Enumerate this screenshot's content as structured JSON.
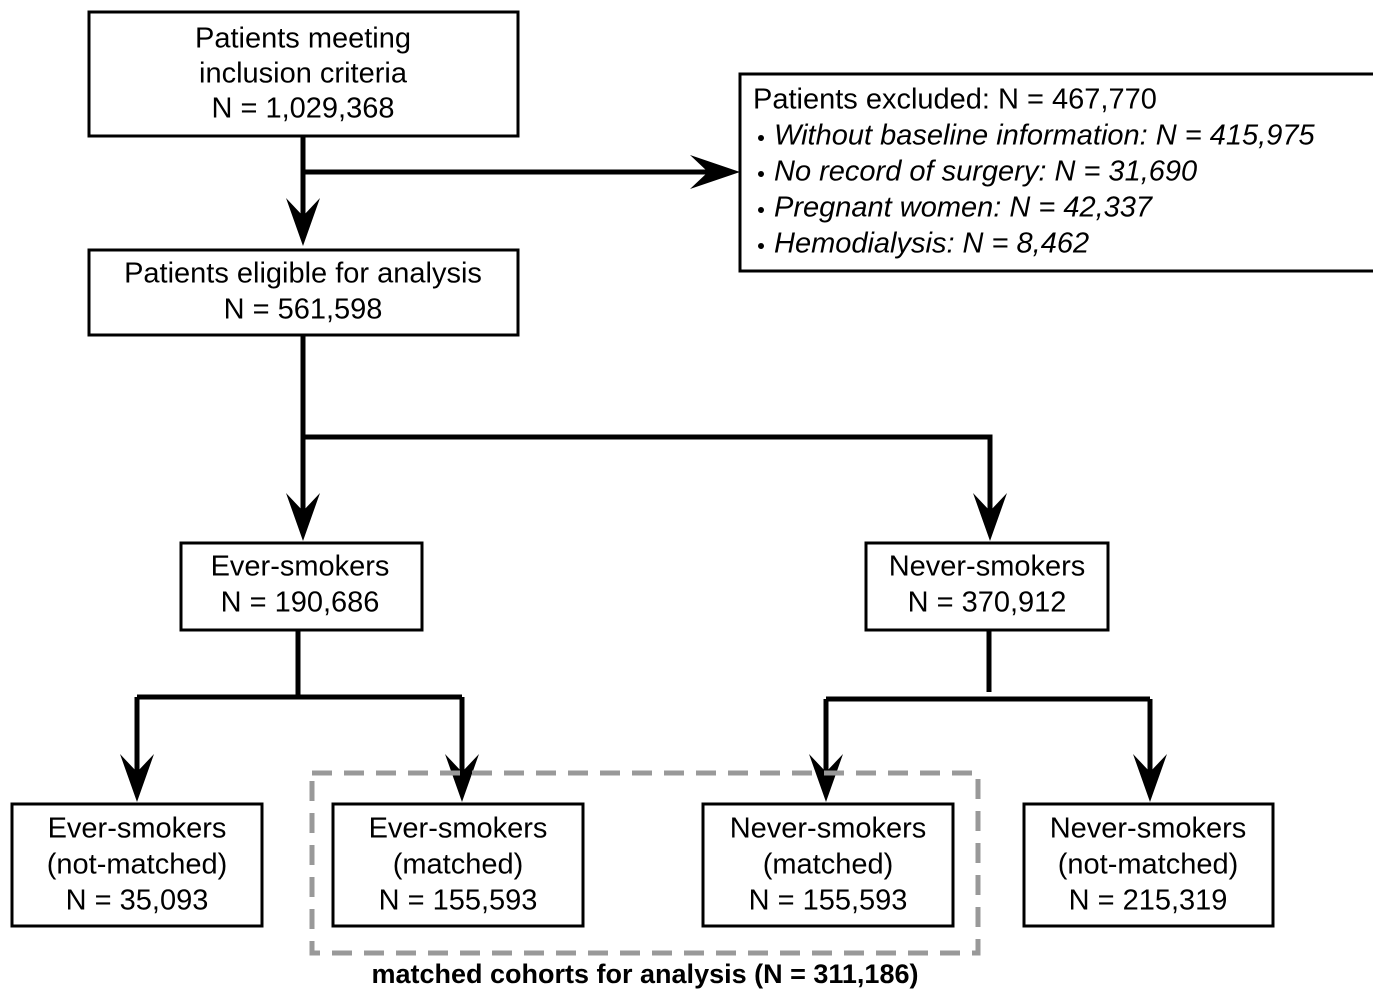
{
  "nodes": [
    {
      "lines": [
        "Patients meeting",
        "inclusion criteria",
        "N = 1,029,368"
      ]
    },
    {
      "lines": [
        "Patients eligible for analysis",
        "N = 561,598"
      ]
    },
    {
      "lines": [
        "Ever-smokers",
        "N = 190,686"
      ]
    },
    {
      "lines": [
        "Never-smokers",
        "N = 370,912"
      ]
    },
    {
      "lines": [
        "Ever-smokers",
        "(not-matched)",
        "N = 35,093"
      ]
    },
    {
      "lines": [
        "Ever-smokers",
        "(matched)",
        "N = 155,593"
      ]
    },
    {
      "lines": [
        "Never-smokers",
        "(matched)",
        "N = 155,593"
      ]
    },
    {
      "lines": [
        "Never-smokers",
        "(not-matched)",
        "N = 215,319"
      ]
    }
  ],
  "excluded": {
    "title": "Patients excluded: N = 467,770",
    "items": [
      "Without baseline information: N = 415,975",
      "No record of surgery: N = 31,690",
      "Pregnant women: N = 42,337",
      "Hemodialysis: N = 8,462"
    ]
  },
  "footer": "matched cohorts for analysis (N = 311,186)"
}
